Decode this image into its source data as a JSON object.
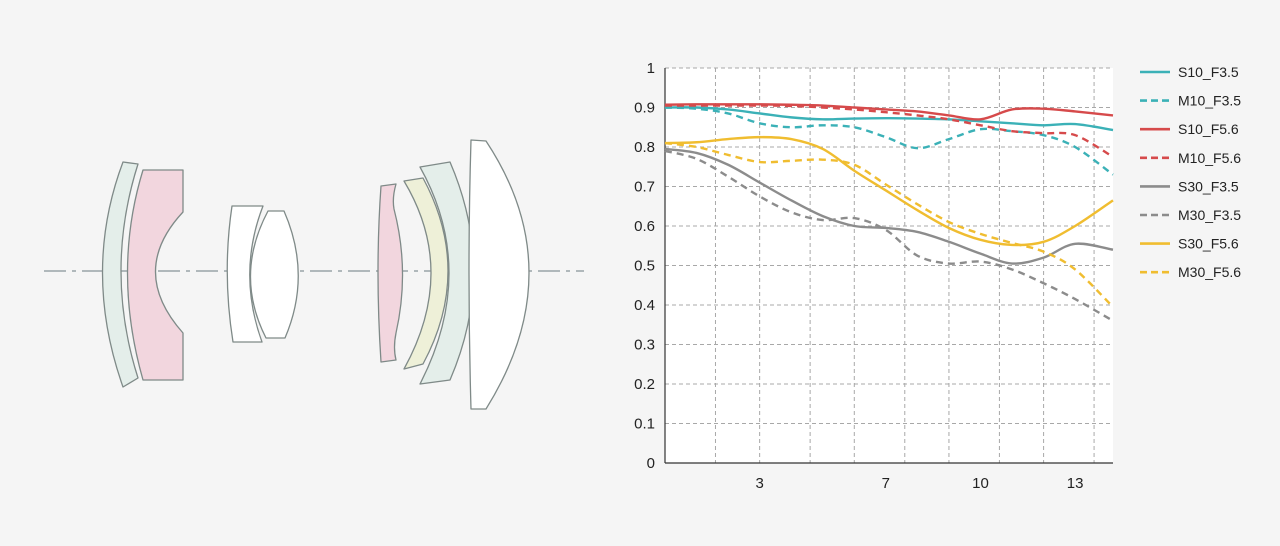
{
  "colors": {
    "background": "#f5f5f5",
    "cyan": "#3bb1b7",
    "red": "#d64a4b",
    "gray": "#8c8c8c",
    "yellow": "#f0bd30",
    "lens_green": "#e4eeea",
    "lens_pink": "#f2d6de",
    "lens_yellow": "#eef0d8",
    "lens_white": "#ffffff",
    "lens_stroke": "#7f8a88",
    "axis_line": "#9aa3a8",
    "grid": "#a8a8a8"
  },
  "lens_diagram": {
    "elements": [
      {
        "name": "lens-element-1",
        "fill": "lens_green"
      },
      {
        "name": "lens-element-2",
        "fill": "lens_pink"
      },
      {
        "name": "lens-element-3",
        "fill": "lens_white"
      },
      {
        "name": "lens-element-4",
        "fill": "lens_white"
      },
      {
        "name": "lens-element-5",
        "fill": "lens_pink"
      },
      {
        "name": "lens-element-6",
        "fill": "lens_yellow"
      },
      {
        "name": "lens-element-7",
        "fill": "lens_green"
      },
      {
        "name": "lens-element-8",
        "fill": "lens_white"
      }
    ]
  },
  "chart_data": {
    "type": "line",
    "title": "",
    "xlabel": "",
    "ylabel": "",
    "xlim": [
      0,
      14.2
    ],
    "ylim": [
      0,
      1
    ],
    "x_ticks": [
      3,
      7,
      10,
      13
    ],
    "x_tick_labels": [
      "3",
      "7",
      "10",
      "13"
    ],
    "y_ticks": [
      0,
      0.1,
      0.2,
      0.3,
      0.4,
      0.5,
      0.6,
      0.7,
      0.8,
      0.9,
      1
    ],
    "y_tick_labels": [
      "0",
      "0.1",
      "0.2",
      "0.3",
      "0.4",
      "0.5",
      "0.6",
      "0.7",
      "0.8",
      "0.9",
      "1"
    ],
    "x_grid": [
      1.6,
      3,
      4.6,
      6,
      7.6,
      9,
      10.6,
      12,
      13.6
    ],
    "grid": true,
    "legend_position": "right",
    "series": [
      {
        "name": "S10_F3.5",
        "color": "cyan",
        "dashed": false,
        "x": [
          0,
          1,
          2,
          3,
          4,
          5,
          6,
          7,
          8,
          9,
          10,
          11,
          12,
          13,
          14.2
        ],
        "y": [
          0.9,
          0.9,
          0.895,
          0.885,
          0.875,
          0.87,
          0.872,
          0.873,
          0.872,
          0.87,
          0.865,
          0.86,
          0.855,
          0.858,
          0.843
        ]
      },
      {
        "name": "M10_F3.5",
        "color": "cyan",
        "dashed": true,
        "x": [
          0,
          1,
          2,
          3,
          4,
          5,
          6,
          7,
          8,
          9,
          10,
          11,
          12,
          13,
          14.2
        ],
        "y": [
          0.9,
          0.897,
          0.885,
          0.86,
          0.85,
          0.855,
          0.85,
          0.825,
          0.797,
          0.82,
          0.845,
          0.84,
          0.83,
          0.8,
          0.73
        ]
      },
      {
        "name": "S10_F5.6",
        "color": "red",
        "dashed": false,
        "x": [
          0,
          1,
          2,
          3,
          4,
          5,
          6,
          7,
          8,
          9,
          10,
          11,
          12,
          13,
          14.2
        ],
        "y": [
          0.907,
          0.908,
          0.908,
          0.908,
          0.907,
          0.905,
          0.9,
          0.895,
          0.89,
          0.88,
          0.87,
          0.895,
          0.897,
          0.89,
          0.88
        ]
      },
      {
        "name": "M10_F5.6",
        "color": "red",
        "dashed": true,
        "x": [
          0,
          1,
          2,
          3,
          4,
          5,
          6,
          7,
          8,
          9,
          10,
          11,
          12,
          13,
          14.2
        ],
        "y": [
          0.905,
          0.905,
          0.905,
          0.905,
          0.904,
          0.9,
          0.895,
          0.888,
          0.88,
          0.87,
          0.855,
          0.84,
          0.835,
          0.83,
          0.775
        ]
      },
      {
        "name": "S30_F3.5",
        "color": "gray",
        "dashed": false,
        "x": [
          0,
          1,
          2,
          3,
          4,
          5,
          6,
          7,
          8,
          9,
          10,
          11,
          12,
          13,
          14.2
        ],
        "y": [
          0.795,
          0.785,
          0.755,
          0.71,
          0.665,
          0.625,
          0.6,
          0.595,
          0.585,
          0.56,
          0.53,
          0.505,
          0.52,
          0.555,
          0.54
        ]
      },
      {
        "name": "M30_F3.5",
        "color": "gray",
        "dashed": true,
        "x": [
          0,
          1,
          2,
          3,
          4,
          5,
          6,
          7,
          8,
          9,
          10,
          11,
          12,
          13,
          14.2
        ],
        "y": [
          0.79,
          0.77,
          0.725,
          0.675,
          0.635,
          0.615,
          0.62,
          0.59,
          0.525,
          0.505,
          0.51,
          0.49,
          0.455,
          0.415,
          0.36
        ]
      },
      {
        "name": "S30_F5.6",
        "color": "yellow",
        "dashed": false,
        "x": [
          0,
          1,
          2,
          3,
          4,
          5,
          6,
          7,
          8,
          9,
          10,
          11,
          12,
          13,
          14.2
        ],
        "y": [
          0.81,
          0.812,
          0.82,
          0.825,
          0.82,
          0.795,
          0.74,
          0.69,
          0.64,
          0.595,
          0.565,
          0.552,
          0.56,
          0.6,
          0.665
        ]
      },
      {
        "name": "M30_F5.6",
        "color": "yellow",
        "dashed": true,
        "x": [
          0,
          1,
          2,
          3,
          4,
          5,
          6,
          7,
          8,
          9,
          10,
          11,
          12,
          13,
          14.2
        ],
        "y": [
          0.81,
          0.8,
          0.78,
          0.762,
          0.765,
          0.768,
          0.755,
          0.705,
          0.655,
          0.61,
          0.58,
          0.557,
          0.535,
          0.49,
          0.395
        ]
      }
    ]
  }
}
